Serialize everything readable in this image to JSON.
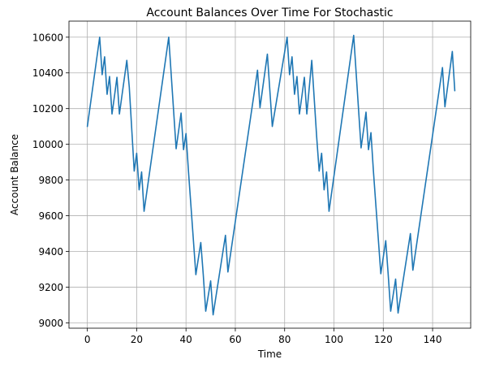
{
  "chart_data": {
    "type": "line",
    "title": "Account Balances Over Time For Stochastic",
    "xlabel": "Time",
    "ylabel": "Account Balance",
    "xlim": [
      -7.45,
      155.45
    ],
    "ylim": [
      8970,
      10690
    ],
    "xticks": [
      0,
      20,
      40,
      60,
      80,
      100,
      120,
      140
    ],
    "yticks": [
      9000,
      9200,
      9400,
      9600,
      9800,
      10000,
      10200,
      10400,
      10600
    ],
    "grid": true,
    "legend": "none",
    "colors": {
      "series": "#1f77b4"
    },
    "series": [
      {
        "name": "",
        "x": [
          0,
          5,
          6,
          7,
          8,
          9,
          10,
          11,
          12,
          13,
          14,
          16,
          17,
          19,
          20,
          21,
          22,
          23,
          33,
          36,
          38,
          39,
          40,
          41,
          44,
          46,
          47,
          48,
          49,
          50,
          51,
          56,
          57,
          69,
          70,
          73,
          75,
          81,
          82,
          83,
          84,
          85,
          86,
          87,
          88,
          89,
          91,
          93,
          94,
          95,
          96,
          97,
          98,
          108,
          111,
          113,
          114,
          115,
          116,
          119,
          121,
          122,
          123,
          124,
          125,
          126,
          131,
          132,
          144,
          145,
          148,
          149
        ],
        "y": [
          10100,
          10600,
          10390,
          10490,
          10280,
          10380,
          10170,
          10270,
          10375,
          10170,
          10270,
          10470,
          10320,
          9850,
          9950,
          9745,
          9845,
          9625,
          10600,
          9975,
          10175,
          9970,
          10060,
          9850,
          9270,
          9450,
          9270,
          9065,
          9150,
          9235,
          9045,
          9490,
          9285,
          10415,
          10205,
          10505,
          10100,
          10600,
          10390,
          10490,
          10280,
          10380,
          10170,
          10270,
          10375,
          10170,
          10470,
          10040,
          9850,
          9950,
          9745,
          9845,
          9625,
          10610,
          9980,
          10180,
          9970,
          10065,
          9850,
          9275,
          9460,
          9270,
          9065,
          9155,
          9245,
          9055,
          9500,
          9295,
          10430,
          10210,
          10520,
          10300
        ]
      }
    ]
  }
}
